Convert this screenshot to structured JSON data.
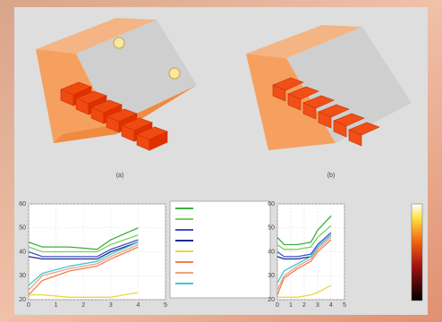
{
  "panel_labels": [
    "(a)",
    "(b)"
  ],
  "chart_data": [
    {
      "type": "line",
      "x": [
        0,
        0.5,
        1.5,
        2.5,
        3,
        4
      ],
      "xlim": [
        0,
        5
      ],
      "ylim": [
        20,
        60
      ],
      "yticks": [
        20,
        30,
        40,
        50,
        60
      ],
      "xticks": [
        0,
        1,
        2,
        3,
        4,
        5
      ],
      "grid": true,
      "series": [
        {
          "color": "#3cb043",
          "values": [
            44,
            42,
            42,
            41,
            45,
            50
          ]
        },
        {
          "color": "#7ccf5a",
          "values": [
            42,
            40,
            40,
            40,
            43,
            47
          ]
        },
        {
          "color": "#3a52c8",
          "values": [
            40,
            38,
            38,
            38,
            41,
            45
          ]
        },
        {
          "color": "#1e2a8a",
          "values": [
            38,
            37,
            37,
            37,
            40,
            44
          ]
        },
        {
          "color": "#e8d840",
          "values": [
            22,
            22,
            21,
            21,
            21,
            23
          ]
        },
        {
          "color": "#f08050",
          "values": [
            22,
            28,
            32,
            34,
            37,
            42
          ]
        },
        {
          "color": "#f0a080",
          "values": [
            24,
            30,
            33,
            35,
            38,
            43
          ]
        },
        {
          "color": "#40c8d8",
          "values": [
            26,
            31,
            34,
            36,
            39,
            44
          ]
        }
      ]
    },
    {
      "type": "line",
      "x": [
        0,
        0.5,
        1.5,
        2.5,
        3,
        4
      ],
      "xlim": [
        0,
        5
      ],
      "ylim": [
        20,
        60
      ],
      "yticks": [
        20,
        30,
        40,
        50,
        60
      ],
      "xticks": [
        0,
        1,
        2,
        3,
        4,
        5
      ],
      "grid": true,
      "series": [
        {
          "color": "#3cb043",
          "values": [
            46,
            43,
            43,
            44,
            49,
            55
          ]
        },
        {
          "color": "#7ccf5a",
          "values": [
            43,
            41,
            41,
            42,
            46,
            51
          ]
        },
        {
          "color": "#3a52c8",
          "values": [
            40,
            38,
            38,
            39,
            43,
            48
          ]
        },
        {
          "color": "#1e2a8a",
          "values": [
            38,
            37,
            37,
            38,
            42,
            47
          ]
        },
        {
          "color": "#e8d840",
          "values": [
            21,
            21,
            21,
            22,
            23,
            26
          ]
        },
        {
          "color": "#f08050",
          "values": [
            22,
            29,
            33,
            36,
            40,
            45
          ]
        },
        {
          "color": "#f0a080",
          "values": [
            24,
            30,
            34,
            37,
            41,
            46
          ]
        },
        {
          "color": "#40c8d8",
          "values": [
            27,
            32,
            35,
            38,
            42,
            47
          ]
        }
      ]
    }
  ]
}
